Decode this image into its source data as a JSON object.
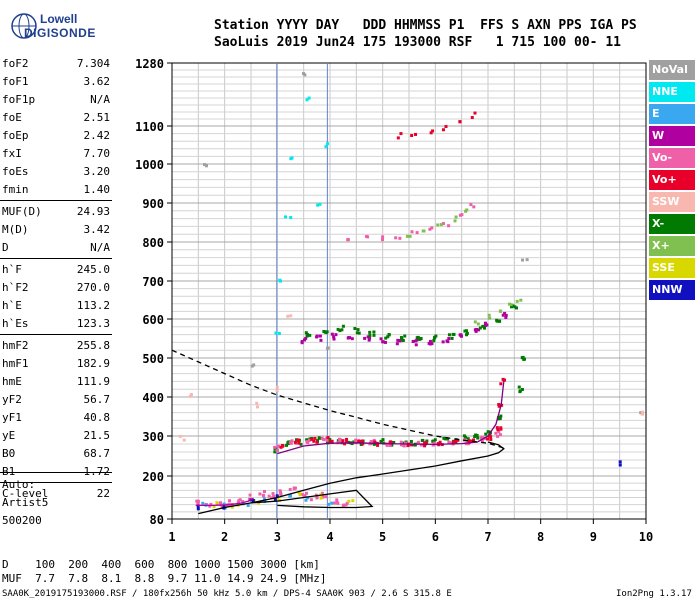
{
  "brand": {
    "line1": "Lowell",
    "line2": "DIGISONDE"
  },
  "header": {
    "line1": "Station YYYY DAY   DDD HHMMSS P1  FFS S AXN PPS IGA PS",
    "line2": "SaoLuis 2019 Jun24 175 193000 RSF   1 715 100 00- 11"
  },
  "params": [
    {
      "name": "foF2",
      "value": "7.304"
    },
    {
      "name": "foF1",
      "value": "3.62"
    },
    {
      "name": "foF1p",
      "value": "N/A"
    },
    {
      "name": "foE",
      "value": "2.51"
    },
    {
      "name": "foEp",
      "value": "2.42"
    },
    {
      "name": "fxI",
      "value": "7.70"
    },
    {
      "name": "foEs",
      "value": "3.20"
    },
    {
      "name": "fmin",
      "value": "1.40"
    },
    {
      "name": "MUF(D)",
      "value": "24.93"
    },
    {
      "name": "M(D)",
      "value": "3.42"
    },
    {
      "name": "D",
      "value": "N/A"
    },
    {
      "name": "h`F",
      "value": "245.0"
    },
    {
      "name": "h`F2",
      "value": "270.0"
    },
    {
      "name": "h`E",
      "value": "113.2"
    },
    {
      "name": "h`Es",
      "value": "123.3"
    },
    {
      "name": "hmF2",
      "value": "255.8"
    },
    {
      "name": "hmF1",
      "value": "182.9"
    },
    {
      "name": "hmE",
      "value": "111.9"
    },
    {
      "name": "yF2",
      "value": "56.7"
    },
    {
      "name": "yF1",
      "value": "40.8"
    },
    {
      "name": "yE",
      "value": "21.5"
    },
    {
      "name": "B0",
      "value": "68.7"
    },
    {
      "name": "B1",
      "value": "1.72"
    },
    {
      "name": "C-level",
      "value": "22"
    }
  ],
  "notes": {
    "auto": "Auto:",
    "artist": "Artist5",
    "code": "500200"
  },
  "legend": [
    {
      "label": "NoVal",
      "color": "#a0a0a0"
    },
    {
      "label": "NNE",
      "color": "#00e8f0"
    },
    {
      "label": "E",
      "color": "#3aa8f0"
    },
    {
      "label": "W",
      "color": "#b000a0"
    },
    {
      "label": "Vo-",
      "color": "#f060a8"
    },
    {
      "label": "Vo+",
      "color": "#e8002a"
    },
    {
      "label": "SSW",
      "color": "#f8b8b0"
    },
    {
      "label": "X-",
      "color": "#007a00"
    },
    {
      "label": "X+",
      "color": "#80c050"
    },
    {
      "label": "SSE",
      "color": "#d8d800"
    },
    {
      "label": "NNW",
      "color": "#1010c0"
    }
  ],
  "footer": {
    "d_row": "D    100  200  400  600  800 1000 1500 3000 [km]",
    "muf_row": "MUF  7.7  7.8  8.1  8.8  9.7 11.0 14.9 24.9 [MHz]",
    "file_info": "SAA0K_2019175193000.RSF / 180fx256h 50 kHz 5.0 km / DPS-4 SAA0K 903 / 2.6 S 315.8 E",
    "version": "Ion2Png 1.3.17"
  },
  "chart_data": {
    "type": "scatter",
    "x_ticks": [
      "1",
      "2",
      "3",
      "4",
      "5",
      "6",
      "7",
      "8",
      "9",
      "10"
    ],
    "y_ticks": [
      "80",
      "200",
      "300",
      "400",
      "500",
      "600",
      "700",
      "800",
      "900",
      "1000",
      "1100",
      "1280"
    ],
    "xlim": [
      1,
      10
    ],
    "ylim": [
      80,
      1280
    ],
    "grid": true,
    "vertical_markers": [
      {
        "x": 2.99,
        "color": "#6080d0"
      },
      {
        "x": 3.95,
        "color": "#6080d0"
      }
    ],
    "traces": [
      {
        "name": "E-layer virtual height",
        "color": "#b000a0",
        "style": "solid",
        "x": [
          1.45,
          1.8,
          2.1,
          2.3,
          2.45,
          2.55
        ],
        "y": [
          118,
          118,
          120,
          124,
          130,
          138
        ]
      },
      {
        "name": "F virtual height O",
        "color": "#800080",
        "style": "solid",
        "x": [
          3.0,
          3.5,
          4.0,
          4.5,
          5.0,
          5.5,
          6.0,
          6.5,
          6.8,
          7.0,
          7.15,
          7.25,
          7.3
        ],
        "y": [
          256,
          275,
          282,
          283,
          281,
          280,
          279,
          281,
          285,
          300,
          330,
          380,
          440
        ]
      },
      {
        "name": "true height profile",
        "color": "#000000",
        "style": "solid",
        "x": [
          1.5,
          2.0,
          2.5,
          3.0,
          3.5,
          4.0,
          4.5,
          5.0,
          5.5,
          6.0,
          6.5,
          7.0,
          7.2,
          7.3,
          7.2,
          7.0
        ],
        "y": [
          95,
          112,
          125,
          140,
          160,
          180,
          195,
          205,
          215,
          225,
          238,
          250,
          258,
          268,
          278,
          285
        ]
      },
      {
        "name": "extrapolated topside",
        "color": "#000000",
        "style": "dashed",
        "x": [
          1.0,
          1.5,
          2.0,
          2.5,
          3.0,
          3.5,
          4.0,
          4.5,
          5.0,
          5.5,
          6.0,
          6.5,
          7.0,
          7.3
        ],
        "y": [
          520,
          490,
          460,
          430,
          405,
          385,
          365,
          348,
          330,
          315,
          300,
          290,
          282,
          270
        ]
      },
      {
        "name": "inner loop",
        "color": "#000000",
        "style": "solid",
        "x": [
          2.5,
          3.0,
          3.5,
          4.0,
          4.5,
          4.8,
          4.5,
          4.0,
          3.5,
          3.0
        ],
        "y": [
          125,
          130,
          140,
          150,
          160,
          115,
          112,
          112,
          114,
          118
        ]
      }
    ],
    "echo_clusters": [
      {
        "color": "#007a00",
        "x": [
          3.0,
          3.2,
          3.4,
          3.6,
          3.8,
          4.0,
          4.2,
          4.4,
          4.6,
          4.8,
          5.0,
          5.2,
          5.4,
          5.6,
          5.8,
          6.0,
          6.2,
          6.4,
          6.6,
          6.8,
          7.0,
          7.2,
          7.6,
          7.65
        ],
        "y": [
          265,
          280,
          285,
          290,
          292,
          288,
          285,
          283,
          283,
          285,
          285,
          283,
          282,
          282,
          283,
          285,
          288,
          290,
          295,
          300,
          310,
          350,
          420,
          500
        ]
      },
      {
        "color": "#f060a8",
        "x": [
          3.0,
          3.3,
          3.6,
          3.9,
          4.2,
          4.5,
          4.8,
          5.1,
          5.4,
          5.7,
          6.0,
          6.3,
          6.6,
          6.9,
          7.2
        ],
        "y": [
          270,
          282,
          288,
          290,
          286,
          284,
          283,
          282,
          281,
          280,
          280,
          283,
          286,
          292,
          305
        ]
      },
      {
        "color": "#e8002a",
        "x": [
          3.1,
          3.4,
          3.7,
          4.0,
          4.3,
          4.6,
          4.9,
          5.2,
          5.5,
          5.8,
          6.1,
          6.4,
          6.7,
          7.0,
          7.2,
          7.25,
          7.3
        ],
        "y": [
          272,
          284,
          289,
          290,
          286,
          283,
          282,
          281,
          280,
          280,
          281,
          284,
          288,
          295,
          320,
          380,
          440
        ]
      },
      {
        "color": "#b000a0",
        "x": [
          3.5,
          3.8,
          4.1,
          4.4,
          4.7,
          5.0,
          5.3,
          5.6,
          5.9,
          6.2,
          6.5,
          6.8,
          7.0,
          7.3
        ],
        "y": [
          545,
          550,
          555,
          552,
          548,
          545,
          542,
          540,
          540,
          545,
          555,
          568,
          585,
          610
        ]
      },
      {
        "color": "#007a00",
        "x": [
          3.6,
          3.9,
          4.2,
          4.5,
          4.8,
          5.1,
          5.4,
          5.7,
          6.0,
          6.3,
          6.6,
          6.9,
          7.2,
          7.5
        ],
        "y": [
          560,
          570,
          575,
          570,
          562,
          555,
          550,
          548,
          550,
          555,
          565,
          580,
          600,
          630
        ]
      },
      {
        "color": "#80c050",
        "x": [
          6.8,
          7.0,
          7.2,
          7.4,
          7.6
        ],
        "y": [
          590,
          605,
          620,
          635,
          650
        ]
      },
      {
        "color": "#f060a8",
        "x": [
          4.3,
          4.7,
          5.0,
          5.3,
          5.6,
          5.9,
          6.2,
          6.5,
          6.7
        ],
        "y": [
          805,
          810,
          812,
          815,
          820,
          830,
          845,
          870,
          890
        ]
      },
      {
        "color": "#80c050",
        "x": [
          5.5,
          5.8,
          6.1,
          6.4,
          6.6
        ],
        "y": [
          815,
          825,
          840,
          860,
          885
        ]
      },
      {
        "color": "#e8002a",
        "x": [
          5.3,
          5.6,
          5.9,
          6.2,
          6.5,
          6.7
        ],
        "y": [
          1075,
          1080,
          1085,
          1095,
          1110,
          1130
        ]
      },
      {
        "color": "#f060a8",
        "x": [
          1.5,
          1.7,
          1.9,
          2.1,
          2.3,
          2.5,
          2.7,
          2.9,
          3.1,
          3.3,
          3.5,
          3.7,
          3.9,
          4.1,
          4.3
        ],
        "y": [
          125,
          122,
          120,
          125,
          130,
          140,
          150,
          145,
          155,
          160,
          150,
          140,
          145,
          130,
          120
        ]
      },
      {
        "color": "#3aa8f0",
        "x": [
          1.6,
          2.0,
          2.4,
          2.8,
          3.2,
          3.6,
          4.0
        ],
        "y": [
          118,
          115,
          122,
          130,
          140,
          135,
          125
        ]
      },
      {
        "color": "#d8d800",
        "x": [
          1.8,
          2.2,
          2.6,
          3.0,
          3.4,
          3.8,
          4.4
        ],
        "y": [
          120,
          118,
          128,
          135,
          150,
          142,
          128
        ]
      },
      {
        "color": "#1010c0",
        "x": [
          1.45,
          2.0,
          2.5,
          3.0,
          9.5
        ],
        "y": [
          112,
          115,
          128,
          138,
          230
        ]
      },
      {
        "color": "#00e8f0",
        "x": [
          3.0,
          3.1,
          3.2,
          3.3,
          3.6,
          3.8,
          3.9
        ],
        "y": [
          560,
          700,
          860,
          1010,
          1180,
          900,
          1050
        ]
      },
      {
        "color": "#a0a0a0",
        "x": [
          1.6,
          2.5,
          3.5,
          4.0,
          7.7,
          9.9
        ],
        "y": [
          995,
          480,
          1250,
          520,
          750,
          360
        ]
      },
      {
        "color": "#f8b8b0",
        "x": [
          1.2,
          1.35,
          2.6,
          3.0,
          3.2,
          9.9
        ],
        "y": [
          295,
          400,
          380,
          420,
          610,
          355
        ]
      }
    ]
  }
}
